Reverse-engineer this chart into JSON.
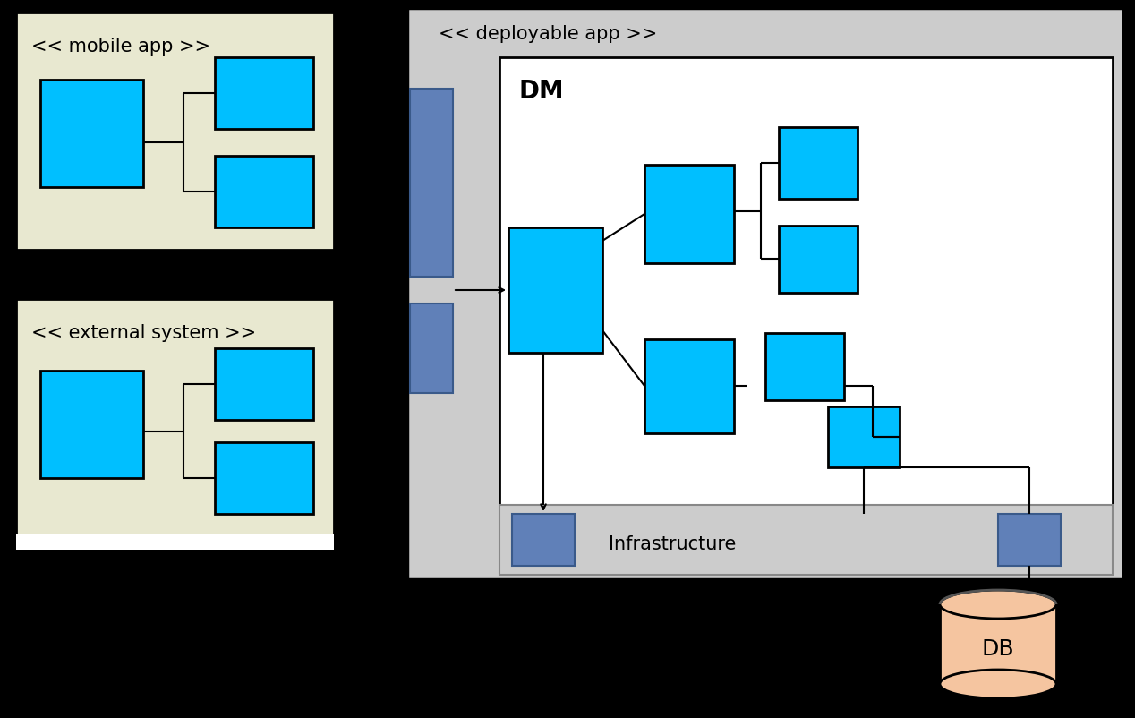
{
  "bg_color": "#000000",
  "cyan": "#00BFFF",
  "blue_medium": "#6080B8",
  "olive_bg": "#E8E8D0",
  "light_gray": "#CCCCCC",
  "dm_white": "#FFFFFF",
  "db_color": "#F5C5A0",
  "mobile_app_label": "<< mobile app >>",
  "external_system_label": "<< external system >>",
  "deployable_app_label": "<< deployable app >>",
  "dm_label": "DM",
  "infra_label": "Infrastructure",
  "db_label": "DB",
  "black": "#000000",
  "dark_blue_border": "#3A5A8A"
}
